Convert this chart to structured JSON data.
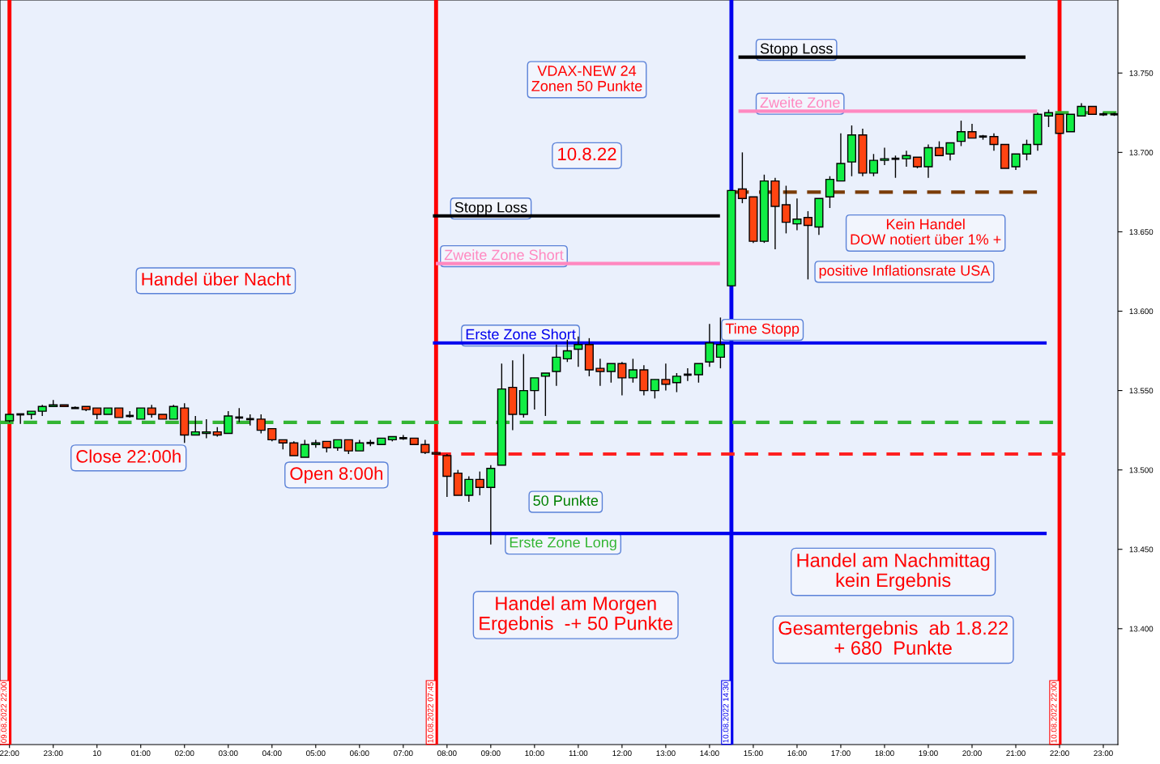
{
  "chart_data": {
    "type": "candlestick",
    "annotations": [
      "VDAX-NEW 24\nZonen 50 Punkte",
      "10.8.22",
      "Handel über Nacht",
      "Close 22:00h",
      "Open 8:00h",
      "50 Punkte",
      "Handel am Morgen\nErgebnis  -+ 50 Punkte",
      "Handel am Nachmittag\nkein Ergebnis",
      "Gesamtergebnis  ab 1.8.22\n+ 680  Punkte",
      "Kein Handel\nDOW notiert über 1% +",
      "positive Inflationsrate USA",
      "Time Stopp"
    ],
    "x": [
      "2022-08-09T22:00",
      "2022-08-09T22:15",
      "2022-08-09T22:30",
      "2022-08-09T22:45",
      "2022-08-09T23:00",
      "2022-08-09T23:15",
      "2022-08-09T23:30",
      "2022-08-09T23:45",
      "2022-08-10T00:00",
      "2022-08-10T00:15",
      "2022-08-10T00:30",
      "2022-08-10T00:45",
      "2022-08-10T01:00",
      "2022-08-10T01:15",
      "2022-08-10T01:30",
      "2022-08-10T01:45",
      "2022-08-10T02:00",
      "2022-08-10T02:15",
      "2022-08-10T02:30",
      "2022-08-10T02:45",
      "2022-08-10T03:00",
      "2022-08-10T03:15",
      "2022-08-10T03:30",
      "2022-08-10T03:45",
      "2022-08-10T04:00",
      "2022-08-10T04:15",
      "2022-08-10T04:30",
      "2022-08-10T04:45",
      "2022-08-10T05:00",
      "2022-08-10T05:15",
      "2022-08-10T05:30",
      "2022-08-10T05:45",
      "2022-08-10T06:00",
      "2022-08-10T06:15",
      "2022-08-10T06:30",
      "2022-08-10T06:45",
      "2022-08-10T07:00",
      "2022-08-10T07:15",
      "2022-08-10T07:30",
      "2022-08-10T07:45",
      "2022-08-10T08:00",
      "2022-08-10T08:15",
      "2022-08-10T08:30",
      "2022-08-10T08:45",
      "2022-08-10T09:00",
      "2022-08-10T09:15",
      "2022-08-10T09:30",
      "2022-08-10T09:45",
      "2022-08-10T10:00",
      "2022-08-10T10:15",
      "2022-08-10T10:30",
      "2022-08-10T10:45",
      "2022-08-10T11:00",
      "2022-08-10T11:15",
      "2022-08-10T11:30",
      "2022-08-10T11:45",
      "2022-08-10T12:00",
      "2022-08-10T12:15",
      "2022-08-10T12:30",
      "2022-08-10T12:45",
      "2022-08-10T13:00",
      "2022-08-10T13:15",
      "2022-08-10T13:30",
      "2022-08-10T13:45",
      "2022-08-10T14:00",
      "2022-08-10T14:15",
      "2022-08-10T14:30",
      "2022-08-10T14:45",
      "2022-08-10T15:00",
      "2022-08-10T15:15",
      "2022-08-10T15:30",
      "2022-08-10T15:45",
      "2022-08-10T16:00",
      "2022-08-10T16:15",
      "2022-08-10T16:30",
      "2022-08-10T16:45",
      "2022-08-10T17:00",
      "2022-08-10T17:15",
      "2022-08-10T17:30",
      "2022-08-10T17:45",
      "2022-08-10T18:00",
      "2022-08-10T18:15",
      "2022-08-10T18:30",
      "2022-08-10T18:45",
      "2022-08-10T19:00",
      "2022-08-10T19:15",
      "2022-08-10T19:30",
      "2022-08-10T19:45",
      "2022-08-10T20:00",
      "2022-08-10T20:15",
      "2022-08-10T20:30",
      "2022-08-10T20:45",
      "2022-08-10T21:00",
      "2022-08-10T21:15",
      "2022-08-10T21:30",
      "2022-08-10T21:45",
      "2022-08-10T22:00",
      "2022-08-10T22:15",
      "2022-08-10T22:30",
      "2022-08-10T22:45",
      "2022-08-10T23:00",
      "2022-08-10T23:15"
    ],
    "ohlc": [
      [
        13531,
        13535,
        13530,
        13535
      ],
      [
        13535,
        13535,
        13529,
        13535
      ],
      [
        13535,
        13537,
        13532,
        13537
      ],
      [
        13537,
        13541,
        13534,
        13540
      ],
      [
        13540,
        13544,
        13540,
        13541
      ],
      [
        13541,
        13541,
        13540,
        13540
      ],
      [
        13539,
        13540,
        13539,
        13539
      ],
      [
        13540,
        13540,
        13537,
        13538
      ],
      [
        13539,
        13539,
        13532,
        13535
      ],
      [
        13535,
        13539,
        13535,
        13539
      ],
      [
        13539,
        13539,
        13533,
        13533
      ],
      [
        13534,
        13537,
        13533,
        13534
      ],
      [
        13532,
        13539,
        13532,
        13539
      ],
      [
        13539,
        13541,
        13533,
        13535
      ],
      [
        13535,
        13535,
        13532,
        13532
      ],
      [
        13532,
        13541,
        13532,
        13540
      ],
      [
        13539,
        13542,
        13517,
        13522
      ],
      [
        13522,
        13534,
        13522,
        13524
      ],
      [
        13523,
        13532,
        13520,
        13524
      ],
      [
        13524,
        13527,
        13521,
        13522
      ],
      [
        13523,
        13537,
        13523,
        13534
      ],
      [
        13533,
        13539,
        13530,
        13533
      ],
      [
        13532,
        13535,
        13528,
        13532
      ],
      [
        13532,
        13535,
        13523,
        13525
      ],
      [
        13526,
        13526,
        13518,
        13519
      ],
      [
        13519,
        13519,
        13513,
        13517
      ],
      [
        13517,
        13518,
        13509,
        13509
      ],
      [
        13508,
        13519,
        13508,
        13516
      ],
      [
        13516,
        13519,
        13514,
        13517
      ],
      [
        13518,
        13518,
        13511,
        13514
      ],
      [
        13514,
        13519,
        13512,
        13519
      ],
      [
        13519,
        13519,
        13510,
        13512
      ],
      [
        13512,
        13519,
        13512,
        13517
      ],
      [
        13517,
        13519,
        13515,
        13517
      ],
      [
        13516,
        13520,
        13516,
        13520
      ],
      [
        13519,
        13521,
        13518,
        13521
      ],
      [
        13520,
        13522,
        13519,
        13520
      ],
      [
        13520,
        13520,
        13516,
        13516
      ],
      [
        13516,
        13519,
        13510,
        13511
      ],
      [
        13511,
        13511,
        13510,
        13510
      ],
      [
        13509,
        13510,
        13483,
        13496
      ],
      [
        13498,
        13500,
        13484,
        13484
      ],
      [
        13484,
        13496,
        13480,
        13494
      ],
      [
        13494,
        13499,
        13484,
        13489
      ],
      [
        13489,
        13503,
        13453,
        13501
      ],
      [
        13503,
        13567,
        13503,
        13551
      ],
      [
        13552,
        13569,
        13525,
        13535
      ],
      [
        13535,
        13573,
        13533,
        13550
      ],
      [
        13550,
        13558,
        13538,
        13558
      ],
      [
        13559,
        13561,
        13534,
        13561
      ],
      [
        13562,
        13579,
        13553,
        13571
      ],
      [
        13570,
        13582,
        13568,
        13575
      ],
      [
        13576,
        13584,
        13565,
        13579
      ],
      [
        13579,
        13583,
        13559,
        13563
      ],
      [
        13564,
        13570,
        13553,
        13562
      ],
      [
        13562,
        13567,
        13555,
        13567
      ],
      [
        13567,
        13568,
        13547,
        13558
      ],
      [
        13558,
        13570,
        13555,
        13563
      ],
      [
        13563,
        13566,
        13547,
        13550
      ],
      [
        13550,
        13557,
        13545,
        13557
      ],
      [
        13557,
        13567,
        13550,
        13554
      ],
      [
        13555,
        13561,
        13549,
        13559
      ],
      [
        13560,
        13564,
        13556,
        13560
      ],
      [
        13560,
        13567,
        13555,
        13567
      ],
      [
        13568,
        13592,
        13565,
        13580
      ],
      [
        13571,
        13596,
        13564,
        13579
      ],
      [
        13616,
        13676,
        13616,
        13676
      ],
      [
        13677,
        13700,
        13668,
        13671
      ],
      [
        13672,
        13672,
        13643,
        13644
      ],
      [
        13644,
        13686,
        13643,
        13682
      ],
      [
        13682,
        13684,
        13639,
        13666
      ],
      [
        13667,
        13679,
        13649,
        13656
      ],
      [
        13655,
        13671,
        13651,
        13658
      ],
      [
        13659,
        13663,
        13620,
        13654
      ],
      [
        13653,
        13671,
        13648,
        13671
      ],
      [
        13672,
        13685,
        13665,
        13683
      ],
      [
        13682,
        13712,
        13682,
        13693
      ],
      [
        13694,
        13717,
        13685,
        13711
      ],
      [
        13711,
        13715,
        13685,
        13687
      ],
      [
        13687,
        13699,
        13685,
        13695
      ],
      [
        13695,
        13703,
        13692,
        13696
      ],
      [
        13696,
        13698,
        13684,
        13696
      ],
      [
        13696,
        13701,
        13691,
        13698
      ],
      [
        13697,
        13697,
        13690,
        13691
      ],
      [
        13691,
        13705,
        13684,
        13703
      ],
      [
        13703,
        13707,
        13698,
        13698
      ],
      [
        13699,
        13706,
        13695,
        13706
      ],
      [
        13707,
        13720,
        13704,
        13713
      ],
      [
        13713,
        13718,
        13709,
        13709
      ],
      [
        13710,
        13711,
        13708,
        13710
      ],
      [
        13710,
        13712,
        13701,
        13705
      ],
      [
        13705,
        13705,
        13690,
        13690
      ],
      [
        13691,
        13699,
        13689,
        13699
      ],
      [
        13699,
        13708,
        13695,
        13705
      ],
      [
        13705,
        13725,
        13701,
        13724
      ],
      [
        13723,
        13727,
        13716,
        13725
      ],
      [
        13724,
        13724,
        13712,
        13712
      ],
      [
        13713,
        13724,
        13713,
        13724
      ],
      [
        13723,
        13731,
        13723,
        13729
      ],
      [
        13729,
        13729,
        13724,
        13724
      ],
      [
        13724,
        13725,
        13723,
        13724
      ],
      [
        13724,
        13725,
        13723,
        13724
      ]
    ],
    "series": [
      {
        "type": "line",
        "x": [
          "2022-08-09T21:47",
          "2022-08-10T21:51"
        ],
        "values": [
          13530,
          13530
        ],
        "color": "#33b533",
        "line_style": "dashed"
      },
      {
        "type": "line",
        "x": [
          "2022-08-10T07:47",
          "2022-08-10T22:08"
        ],
        "values": [
          13510,
          13510
        ],
        "color": "#ff2020",
        "line_style": "dashed"
      },
      {
        "type": "line",
        "x": [
          "2022-08-10T07:43",
          "2022-08-10T21:40"
        ],
        "values": [
          13580,
          13580
        ],
        "color": "#0000ee",
        "line_style": "solid",
        "name": "Erste Zone Short"
      },
      {
        "type": "line",
        "x": [
          "2022-08-10T07:43",
          "2022-08-10T21:40"
        ],
        "values": [
          13460,
          13460
        ],
        "color": "#0000ee",
        "line_style": "solid",
        "name": "Erste Zone Long"
      },
      {
        "type": "line",
        "x": [
          "2022-08-10T07:43",
          "2022-08-10T14:12"
        ],
        "values": [
          13660,
          13660
        ],
        "color": "#000000",
        "line_style": "solid",
        "name": "Stopp Loss"
      },
      {
        "type": "line",
        "x": [
          "2022-08-10T07:47",
          "2022-08-10T14:12"
        ],
        "values": [
          13630,
          13630
        ],
        "color": "#ff88c0",
        "line_style": "solid",
        "name": "Zweite Zone Short"
      },
      {
        "type": "line",
        "x": [
          "2022-08-10T14:35",
          "2022-08-10T21:29"
        ],
        "values": [
          13675,
          13675
        ],
        "color": "#7a3c08",
        "line_style": "dashed"
      },
      {
        "type": "line",
        "x": [
          "2022-08-10T14:42",
          "2022-08-10T21:11"
        ],
        "values": [
          13760,
          13760
        ],
        "color": "#000000",
        "line_style": "solid",
        "name": "Stopp Loss"
      },
      {
        "type": "line",
        "x": [
          "2022-08-10T14:42",
          "2022-08-10T21:27"
        ],
        "values": [
          13726,
          13726
        ],
        "color": "#ff88c0",
        "line_style": "solid",
        "name": "Zweite Zone"
      },
      {
        "type": "line",
        "x": [
          "2022-08-10T21:54",
          "2022-08-10T23:18"
        ],
        "values": [
          13725,
          13725
        ],
        "color": "#33b533",
        "line_style": "dashed"
      }
    ],
    "ref_lines": [
      {
        "axis": "x",
        "value": "2022-08-09T22:00",
        "label": "09.08.2022 22:00",
        "color": "#ff0000"
      },
      {
        "axis": "x",
        "value": "2022-08-10T07:45",
        "label": "10.08.2022 07:45",
        "color": "#ff0000"
      },
      {
        "axis": "x",
        "value": "2022-08-10T14:30",
        "label": "10.08.2022 14:30",
        "color": "#0000ee"
      },
      {
        "axis": "x",
        "value": "2022-08-10T22:00",
        "label": "10.08.2022 22:00",
        "color": "#ff0000"
      }
    ],
    "xlim": [
      "2022-08-09T21:47",
      "2022-08-10T23:20"
    ],
    "xticks": [
      {
        "value": "2022-08-09T22:00",
        "label": "22:00"
      },
      {
        "value": "2022-08-09T23:00",
        "label": "23:00"
      },
      {
        "value": "2022-08-10T00:00",
        "label": "10"
      },
      {
        "value": "2022-08-10T01:00",
        "label": "01:00"
      },
      {
        "value": "2022-08-10T02:00",
        "label": "02:00"
      },
      {
        "value": "2022-08-10T03:00",
        "label": "03:00"
      },
      {
        "value": "2022-08-10T04:00",
        "label": "04:00"
      },
      {
        "value": "2022-08-10T05:00",
        "label": "05:00"
      },
      {
        "value": "2022-08-10T06:00",
        "label": "06:00"
      },
      {
        "value": "2022-08-10T07:00",
        "label": "07:00"
      },
      {
        "value": "2022-08-10T08:00",
        "label": "08:00"
      },
      {
        "value": "2022-08-10T09:00",
        "label": "09:00"
      },
      {
        "value": "2022-08-10T10:00",
        "label": "10:00"
      },
      {
        "value": "2022-08-10T11:00",
        "label": "11:00"
      },
      {
        "value": "2022-08-10T12:00",
        "label": "12:00"
      },
      {
        "value": "2022-08-10T13:00",
        "label": "13:00"
      },
      {
        "value": "2022-08-10T14:00",
        "label": "14:00"
      },
      {
        "value": "2022-08-10T15:00",
        "label": "15:00"
      },
      {
        "value": "2022-08-10T16:00",
        "label": "16:00"
      },
      {
        "value": "2022-08-10T17:00",
        "label": "17:00"
      },
      {
        "value": "2022-08-10T18:00",
        "label": "18:00"
      },
      {
        "value": "2022-08-10T19:00",
        "label": "19:00"
      },
      {
        "value": "2022-08-10T20:00",
        "label": "20:00"
      },
      {
        "value": "2022-08-10T21:00",
        "label": "21:00"
      },
      {
        "value": "2022-08-10T22:00",
        "label": "22:00"
      },
      {
        "value": "2022-08-10T23:00",
        "label": "23:00"
      }
    ],
    "ylim": [
      13327,
      13796
    ],
    "yticks": [
      {
        "value": 13400,
        "label": "13.400"
      },
      {
        "value": 13450,
        "label": "13.450"
      },
      {
        "value": 13500,
        "label": "13.500"
      },
      {
        "value": 13550,
        "label": "13.550"
      },
      {
        "value": 13600,
        "label": "13.600"
      },
      {
        "value": 13650,
        "label": "13.650"
      },
      {
        "value": 13700,
        "label": "13.700"
      },
      {
        "value": 13750,
        "label": "13.750"
      }
    ],
    "grid": false,
    "legend": false
  }
}
